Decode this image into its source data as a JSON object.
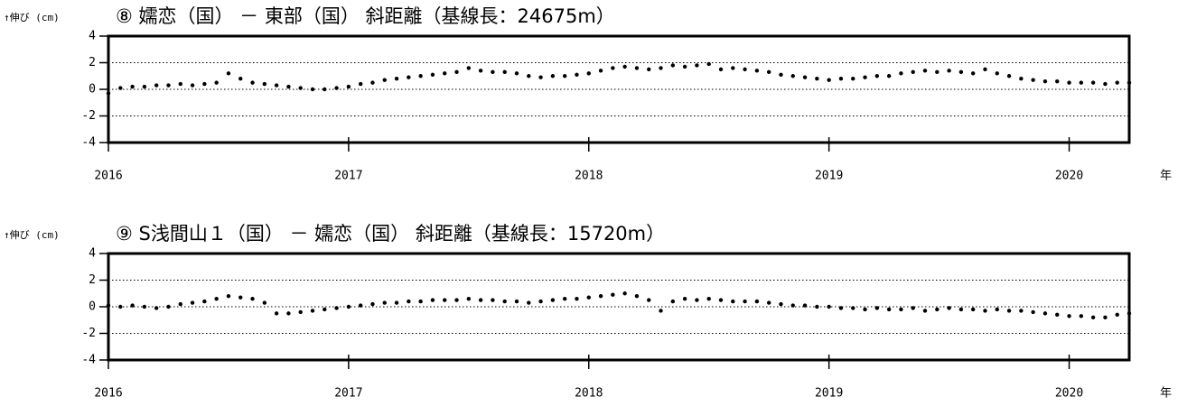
{
  "chart_data": [
    {
      "type": "scatter",
      "title": "⑧ 嬬恋（国） － 東部（国） 斜距離（基線長：24675m）",
      "y_label": "↑伸び (cm)",
      "x_unit": "年",
      "color": "#000000",
      "grid": true,
      "xlim": [
        2016,
        2020.25
      ],
      "xticks": [
        2016,
        2017,
        2018,
        2019,
        2020
      ],
      "ylim": [
        -4,
        4
      ],
      "yticks": [
        -4,
        -2,
        0,
        2,
        4
      ],
      "x": [
        2016,
        2016.05,
        2016.1,
        2016.15,
        2016.2,
        2016.25,
        2016.3,
        2016.35,
        2016.4,
        2016.45,
        2016.5,
        2016.55,
        2016.6,
        2016.65,
        2016.7,
        2016.75,
        2016.8,
        2016.85,
        2016.9,
        2016.95,
        2017,
        2017.05,
        2017.1,
        2017.15,
        2017.2,
        2017.25,
        2017.3,
        2017.35,
        2017.4,
        2017.45,
        2017.5,
        2017.55,
        2017.6,
        2017.65,
        2017.7,
        2017.75,
        2017.8,
        2017.85,
        2017.9,
        2017.95,
        2018,
        2018.05,
        2018.1,
        2018.15,
        2018.2,
        2018.25,
        2018.3,
        2018.35,
        2018.4,
        2018.45,
        2018.5,
        2018.55,
        2018.6,
        2018.65,
        2018.7,
        2018.75,
        2018.8,
        2018.85,
        2018.9,
        2018.95,
        2019,
        2019.05,
        2019.1,
        2019.15,
        2019.2,
        2019.25,
        2019.3,
        2019.35,
        2019.4,
        2019.45,
        2019.5,
        2019.55,
        2019.6,
        2019.65,
        2019.7,
        2019.75,
        2019.8,
        2019.85,
        2019.9,
        2019.95,
        2020,
        2020.05,
        2020.1,
        2020.15,
        2020.2,
        2020.25
      ],
      "values": [
        -0.3,
        0.1,
        0.2,
        0.2,
        0.3,
        0.3,
        0.4,
        0.3,
        0.4,
        0.5,
        1.2,
        0.8,
        0.5,
        0.4,
        0.3,
        0.2,
        0.1,
        0.0,
        0.0,
        0.1,
        0.2,
        0.4,
        0.5,
        0.7,
        0.8,
        0.9,
        1.0,
        1.1,
        1.2,
        1.3,
        1.6,
        1.4,
        1.3,
        1.3,
        1.2,
        1.0,
        0.9,
        1.0,
        1.0,
        1.1,
        1.2,
        1.4,
        1.6,
        1.7,
        1.6,
        1.5,
        1.6,
        1.8,
        1.7,
        1.8,
        1.9,
        1.5,
        1.6,
        1.5,
        1.4,
        1.3,
        1.1,
        1.0,
        0.9,
        0.8,
        0.7,
        0.8,
        0.8,
        0.9,
        1.0,
        1.0,
        1.2,
        1.3,
        1.4,
        1.3,
        1.4,
        1.3,
        1.2,
        1.5,
        1.2,
        1.0,
        0.8,
        0.7,
        0.6,
        0.6,
        0.5,
        0.5,
        0.5,
        0.4,
        0.5,
        0.5
      ]
    },
    {
      "type": "scatter",
      "title": "⑨ S浅間山１（国） － 嬬恋（国） 斜距離（基線長：15720m）",
      "y_label": "↑伸び (cm)",
      "x_unit": "年",
      "color": "#000000",
      "grid": true,
      "xlim": [
        2016,
        2020.25
      ],
      "xticks": [
        2016,
        2017,
        2018,
        2019,
        2020
      ],
      "ylim": [
        -4,
        4
      ],
      "yticks": [
        -4,
        -2,
        0,
        2,
        4
      ],
      "x": [
        2016,
        2016.05,
        2016.1,
        2016.15,
        2016.2,
        2016.25,
        2016.3,
        2016.35,
        2016.4,
        2016.45,
        2016.5,
        2016.55,
        2016.6,
        2016.65,
        2016.7,
        2016.75,
        2016.8,
        2016.85,
        2016.9,
        2016.95,
        2017,
        2017.05,
        2017.1,
        2017.15,
        2017.2,
        2017.25,
        2017.3,
        2017.35,
        2017.4,
        2017.45,
        2017.5,
        2017.55,
        2017.6,
        2017.65,
        2017.7,
        2017.75,
        2017.8,
        2017.85,
        2017.9,
        2017.95,
        2018,
        2018.05,
        2018.1,
        2018.15,
        2018.2,
        2018.25,
        2018.3,
        2018.35,
        2018.4,
        2018.45,
        2018.5,
        2018.55,
        2018.6,
        2018.65,
        2018.7,
        2018.75,
        2018.8,
        2018.85,
        2018.9,
        2018.95,
        2019,
        2019.05,
        2019.1,
        2019.15,
        2019.2,
        2019.25,
        2019.3,
        2019.35,
        2019.4,
        2019.45,
        2019.5,
        2019.55,
        2019.6,
        2019.65,
        2019.7,
        2019.75,
        2019.8,
        2019.85,
        2019.9,
        2019.95,
        2020,
        2020.05,
        2020.1,
        2020.15,
        2020.2,
        2020.25
      ],
      "values": [
        0.1,
        0.0,
        0.1,
        0.0,
        -0.1,
        0.0,
        0.2,
        0.3,
        0.4,
        0.6,
        0.8,
        0.7,
        0.6,
        0.3,
        -0.5,
        -0.5,
        -0.4,
        -0.3,
        -0.2,
        -0.1,
        0.0,
        0.1,
        0.2,
        0.3,
        0.3,
        0.4,
        0.4,
        0.5,
        0.5,
        0.5,
        0.6,
        0.5,
        0.5,
        0.4,
        0.4,
        0.3,
        0.4,
        0.5,
        0.6,
        0.6,
        0.7,
        0.8,
        0.9,
        1.0,
        0.8,
        0.5,
        -0.3,
        0.4,
        0.6,
        0.5,
        0.6,
        0.5,
        0.4,
        0.4,
        0.4,
        0.3,
        0.2,
        0.1,
        0.1,
        0.0,
        0.0,
        -0.1,
        -0.1,
        -0.2,
        -0.1,
        -0.2,
        -0.2,
        -0.1,
        -0.3,
        -0.2,
        -0.1,
        -0.2,
        -0.2,
        -0.3,
        -0.2,
        -0.3,
        -0.3,
        -0.4,
        -0.5,
        -0.6,
        -0.7,
        -0.7,
        -0.8,
        -0.8,
        -0.6,
        -0.5
      ]
    }
  ]
}
